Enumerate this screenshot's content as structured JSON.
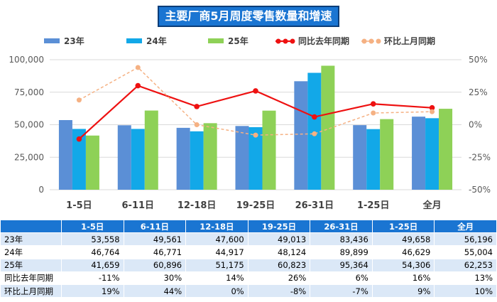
{
  "title": "主要厂商5月周度零售数量和增速",
  "colors": {
    "s23": "#5b8fd6",
    "s24": "#12a8e8",
    "s25": "#8ed157",
    "yoy": "#ee1111",
    "mom": "#f5b183",
    "header_bg": "#1a75d2"
  },
  "chart_data": {
    "type": "bar",
    "title": "主要厂商5月周度零售数量和增速",
    "categories": [
      "1-5日",
      "6-11日",
      "12-18日",
      "19-25日",
      "26-31日",
      "1-25日",
      "全月"
    ],
    "series": [
      {
        "name": "23年",
        "type": "bar",
        "values": [
          53558,
          49561,
          47600,
          49013,
          83436,
          49658,
          56196
        ]
      },
      {
        "name": "24年",
        "type": "bar",
        "values": [
          46764,
          46771,
          44917,
          48124,
          89899,
          46629,
          55004
        ]
      },
      {
        "name": "25年",
        "type": "bar",
        "values": [
          41659,
          60896,
          51175,
          60823,
          95364,
          54306,
          62253
        ]
      },
      {
        "name": "同比去年同期",
        "type": "line",
        "axis": "right",
        "values": [
          -11,
          30,
          14,
          26,
          6,
          16,
          13
        ]
      },
      {
        "name": "环比上月同期",
        "type": "line",
        "axis": "right",
        "style": "dashed",
        "values": [
          19,
          44,
          0,
          -8,
          -7,
          9,
          10
        ]
      }
    ],
    "y_left": {
      "min": 0,
      "max": 100000,
      "ticks": [
        0,
        25000,
        50000,
        75000,
        100000
      ],
      "tick_labels": [
        "0",
        "25,000",
        "50,000",
        "75,000",
        "100,000"
      ]
    },
    "y_right": {
      "min": -50,
      "max": 50,
      "ticks": [
        -50,
        -25,
        0,
        25,
        50
      ],
      "tick_labels": [
        "-50%",
        "-25%",
        "0%",
        "25%",
        "50%"
      ]
    },
    "legend_position": "top"
  },
  "table": {
    "header": [
      "",
      "1-5日",
      "6-11日",
      "12-18日",
      "19-25日",
      "26-31日",
      "1-25日",
      "全月"
    ],
    "rows": [
      {
        "label": "23年",
        "cells": [
          "53,558",
          "49,561",
          "47,600",
          "49,013",
          "83,436",
          "49,658",
          "56,196"
        ]
      },
      {
        "label": "24年",
        "cells": [
          "46,764",
          "46,771",
          "44,917",
          "48,124",
          "89,899",
          "46,629",
          "55,004"
        ]
      },
      {
        "label": "25年",
        "cells": [
          "41,659",
          "60,896",
          "51,175",
          "60,823",
          "95,364",
          "54,306",
          "62,253"
        ]
      },
      {
        "label": "同比去年同期",
        "cells": [
          "-11%",
          "30%",
          "14%",
          "26%",
          "6%",
          "16%",
          "13%"
        ]
      },
      {
        "label": "环比上月同期",
        "cells": [
          "19%",
          "44%",
          "0%",
          "-8%",
          "-7%",
          "9%",
          "10%"
        ]
      }
    ]
  }
}
